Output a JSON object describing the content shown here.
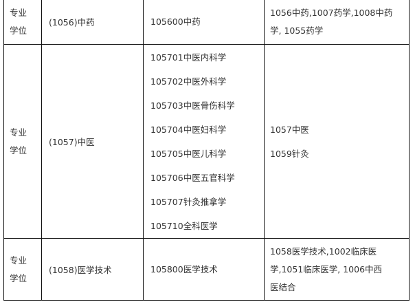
{
  "rows": [
    {
      "category": [
        "专业",
        "学位"
      ],
      "discipline": "(1056)中药",
      "majors": [
        "105600中药"
      ],
      "related": [
        "1056中药,1007药学,1008中药",
        "学, 1055药学"
      ]
    },
    {
      "category": [
        "专业",
        "学位"
      ],
      "discipline": "(1057)中医",
      "majors": [
        "105701中医内科学",
        "105702中医外科学",
        "105703中医骨伤科学",
        "105704中医妇科学",
        "105705中医儿科学",
        "105706中医五官科学",
        "105707针灸推拿学",
        "105710全科医学"
      ],
      "related": [
        "1057中医",
        "1059针灸"
      ]
    },
    {
      "category": [
        "专业",
        "学位"
      ],
      "discipline": "(1058)医学技术",
      "majors": [
        "105800医学技术"
      ],
      "related": [
        "1058医学技术,1002临床医",
        "学,1051临床医学, 1006中西",
        "医结合"
      ]
    }
  ]
}
